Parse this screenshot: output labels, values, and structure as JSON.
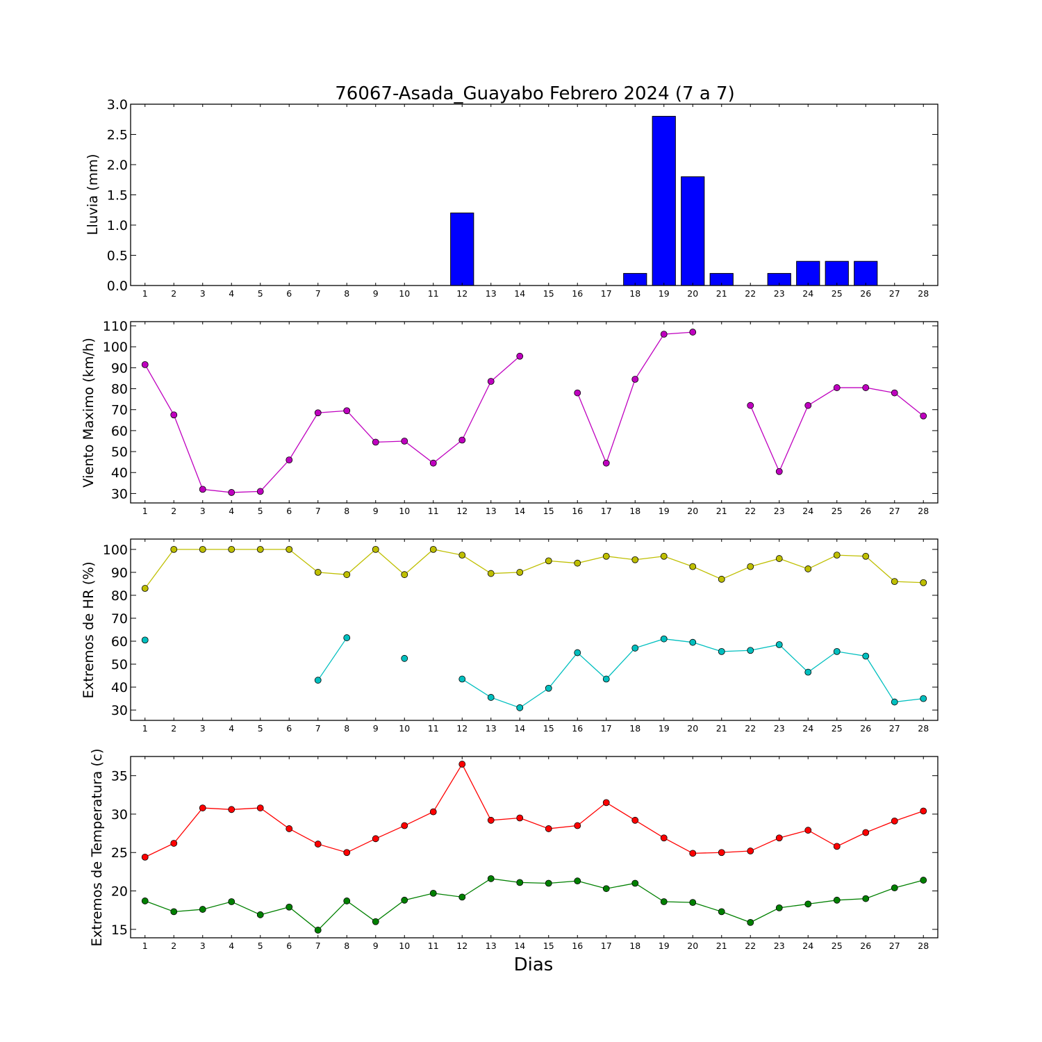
{
  "title": "76067-Asada_Guayabo Febrero 2024  (7 a 7)",
  "xlabel": "Dias",
  "colors": {
    "rain": "#0000ff",
    "wind": "#bf00bf",
    "hr_max": "#bfbf00",
    "hr_min": "#00bfbf",
    "temp_max": "#ff0000",
    "temp_min": "#008000"
  },
  "chart_data": [
    {
      "type": "bar",
      "ylabel": "Lluvia (mm)",
      "categories": [
        1,
        2,
        3,
        4,
        5,
        6,
        7,
        8,
        9,
        10,
        11,
        12,
        13,
        14,
        15,
        16,
        17,
        18,
        19,
        20,
        21,
        22,
        23,
        24,
        25,
        26,
        27,
        28
      ],
      "values": [
        0,
        0,
        0,
        0,
        0,
        0,
        0,
        0,
        0,
        0,
        0,
        1.2,
        0,
        0,
        0,
        0,
        0,
        0.2,
        2.8,
        1.8,
        0.2,
        0,
        0.2,
        0.4,
        0.4,
        0.4,
        0,
        0
      ],
      "xlim": [
        0.5,
        28.5
      ],
      "ylim": [
        0,
        3.0
      ],
      "yticks": [
        0.0,
        0.5,
        1.0,
        1.5,
        2.0,
        2.5,
        3.0
      ],
      "ytick_labels": [
        "0.0",
        "0.5",
        "1.0",
        "1.5",
        "2.0",
        "2.5",
        "3.0"
      ],
      "xtick_labels": [
        "1",
        "2",
        "3",
        "4",
        "5",
        "6",
        "7",
        "8",
        "9",
        "10",
        "11",
        "12",
        "13",
        "14",
        "15",
        "16",
        "17",
        "18",
        "19",
        "20",
        "21",
        "22",
        "23",
        "24",
        "25",
        "26",
        "27",
        "28"
      ]
    },
    {
      "type": "line",
      "ylabel": "Viento Maximo (km/h)",
      "x": [
        1,
        2,
        3,
        4,
        5,
        6,
        7,
        8,
        9,
        10,
        11,
        12,
        13,
        14,
        15,
        16,
        17,
        18,
        19,
        20,
        21,
        22,
        23,
        24,
        25,
        26,
        27,
        28
      ],
      "series": [
        {
          "color": "#bf00bf",
          "values": [
            91.5,
            67.5,
            32,
            30.5,
            31,
            46,
            68.5,
            69.5,
            54.5,
            55,
            44.5,
            55.5,
            83.5,
            95.5,
            null,
            78,
            44.5,
            84.5,
            106,
            107,
            null,
            72,
            40.5,
            72,
            80.5,
            80.5,
            78,
            67
          ]
        }
      ],
      "xlim": [
        0.5,
        28.5
      ],
      "ylim": [
        25.5,
        112
      ],
      "yticks": [
        30,
        40,
        50,
        60,
        70,
        80,
        90,
        100,
        110
      ],
      "ytick_labels": [
        "30",
        "40",
        "50",
        "60",
        "70",
        "80",
        "90",
        "100",
        "110"
      ],
      "xtick_labels": [
        "1",
        "2",
        "3",
        "4",
        "5",
        "6",
        "7",
        "8",
        "9",
        "10",
        "11",
        "12",
        "13",
        "14",
        "15",
        "16",
        "17",
        "18",
        "19",
        "20",
        "21",
        "22",
        "23",
        "24",
        "25",
        "26",
        "27",
        "28"
      ]
    },
    {
      "type": "line",
      "ylabel": "Extremos de HR (%)",
      "x": [
        1,
        2,
        3,
        4,
        5,
        6,
        7,
        8,
        9,
        10,
        11,
        12,
        13,
        14,
        15,
        16,
        17,
        18,
        19,
        20,
        21,
        22,
        23,
        24,
        25,
        26,
        27,
        28
      ],
      "series": [
        {
          "color": "#bfbf00",
          "values": [
            83,
            100,
            100,
            100,
            100,
            100,
            90,
            89,
            100,
            89,
            100,
            97.5,
            89.5,
            90,
            95,
            94,
            97,
            95.5,
            97,
            92.5,
            87,
            92.5,
            96,
            91.5,
            97.5,
            97,
            86,
            85.5
          ]
        },
        {
          "color": "#00bfbf",
          "values": [
            60.5,
            null,
            null,
            null,
            null,
            null,
            43,
            61.5,
            null,
            52.5,
            null,
            43.5,
            35.5,
            31,
            39.5,
            55,
            43.5,
            57,
            61,
            59.5,
            55.5,
            56,
            58.5,
            46.5,
            55.5,
            53.5,
            33.5,
            35
          ]
        }
      ],
      "xlim": [
        0.5,
        28.5
      ],
      "ylim": [
        25.5,
        104.5
      ],
      "yticks": [
        30,
        40,
        50,
        60,
        70,
        80,
        90,
        100
      ],
      "ytick_labels": [
        "30",
        "40",
        "50",
        "60",
        "70",
        "80",
        "90",
        "100"
      ],
      "xtick_labels": [
        "1",
        "2",
        "3",
        "4",
        "5",
        "6",
        "7",
        "8",
        "9",
        "10",
        "11",
        "12",
        "13",
        "14",
        "15",
        "16",
        "17",
        "18",
        "19",
        "20",
        "21",
        "22",
        "23",
        "24",
        "25",
        "26",
        "27",
        "28"
      ]
    },
    {
      "type": "line",
      "ylabel": "Extremos de Temperatura (c)",
      "x": [
        1,
        2,
        3,
        4,
        5,
        6,
        7,
        8,
        9,
        10,
        11,
        12,
        13,
        14,
        15,
        16,
        17,
        18,
        19,
        20,
        21,
        22,
        23,
        24,
        25,
        26,
        27,
        28
      ],
      "series": [
        {
          "color": "#ff0000",
          "values": [
            24.4,
            26.2,
            30.8,
            30.6,
            30.8,
            28.1,
            26.1,
            25,
            26.8,
            28.5,
            30.3,
            36.5,
            29.2,
            29.5,
            28.1,
            28.5,
            31.5,
            29.2,
            26.9,
            24.9,
            25,
            25.2,
            26.9,
            27.9,
            25.8,
            27.6,
            29.1,
            30.4
          ]
        },
        {
          "color": "#008000",
          "values": [
            18.7,
            17.3,
            17.6,
            18.6,
            16.9,
            17.9,
            14.9,
            18.7,
            16,
            18.8,
            19.7,
            19.2,
            21.6,
            21.1,
            21,
            21.3,
            20.3,
            21,
            18.6,
            18.5,
            17.3,
            15.9,
            17.8,
            18.3,
            18.8,
            19,
            20.4,
            21.4
          ]
        }
      ],
      "xlim": [
        0.5,
        28.5
      ],
      "ylim": [
        13.9,
        37.5
      ],
      "yticks": [
        15,
        20,
        25,
        30,
        35
      ],
      "ytick_labels": [
        "15",
        "20",
        "25",
        "30",
        "35"
      ],
      "xtick_labels": [
        "1",
        "2",
        "3",
        "4",
        "5",
        "6",
        "7",
        "8",
        "9",
        "10",
        "11",
        "12",
        "13",
        "14",
        "15",
        "16",
        "17",
        "18",
        "19",
        "20",
        "21",
        "22",
        "23",
        "24",
        "25",
        "26",
        "27",
        "28"
      ]
    }
  ]
}
